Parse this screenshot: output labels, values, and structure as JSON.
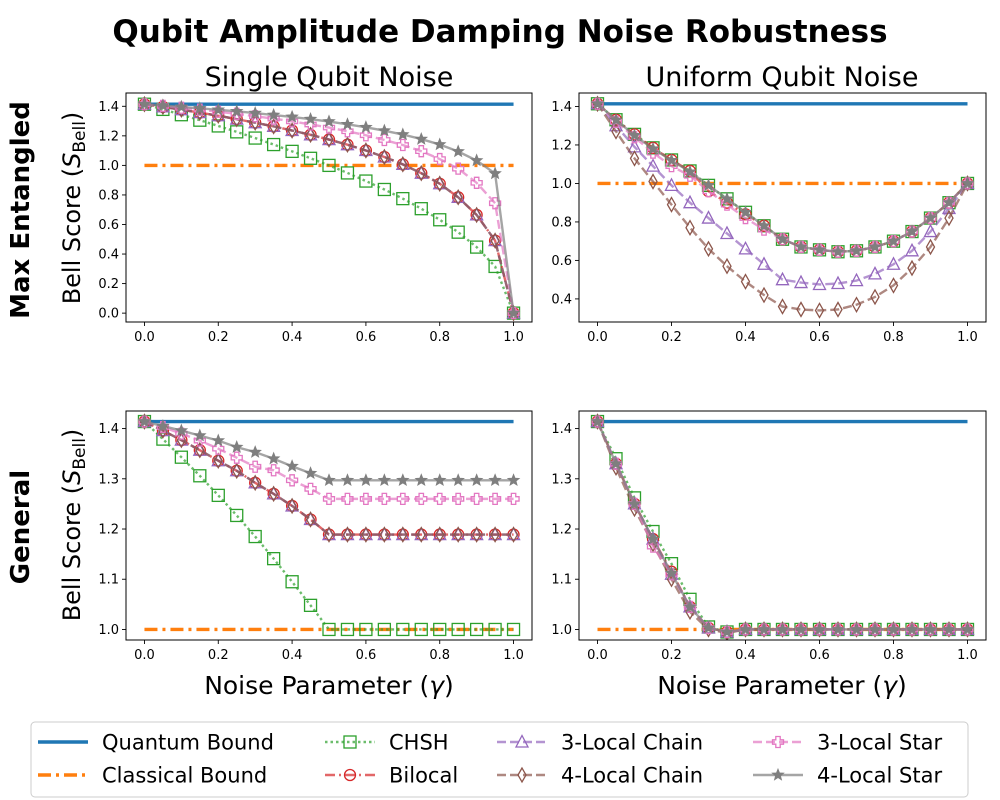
{
  "figure": {
    "suptitle": "Qubit Amplitude Damping Noise Robustness",
    "col_titles": [
      "Single Qubit Noise",
      "Uniform Qubit Noise"
    ],
    "row_labels": [
      "Max Entangled",
      "General"
    ],
    "ylabel_main": "Bell Score (",
    "ylabel_sym": "S",
    "ylabel_sub": "Bell",
    "ylabel_end": ")",
    "xlabel_main": "Noise Parameter (",
    "xlabel_sym": "γ",
    "xlabel_end": ")"
  },
  "legend": {
    "placement": "bottom-center",
    "entries": [
      "Quantum Bound",
      "Classical Bound",
      "CHSH",
      "Bilocal",
      "3-Local Chain",
      "4-Local Chain",
      "3-Local Star",
      "4-Local Star"
    ]
  },
  "chart_data": [
    {
      "type": "line",
      "title": "Single Qubit Noise",
      "row": "Max Entangled",
      "xlabel": "",
      "ylabel": "Bell Score (S_Bell)",
      "xlim": [
        -0.05,
        1.05
      ],
      "ylim": [
        -0.06,
        1.49
      ],
      "xticks": [
        0.0,
        0.2,
        0.4,
        0.6,
        0.8,
        1.0
      ],
      "xtick_labels": [
        "0.0",
        "0.2",
        "0.4",
        "0.6",
        "0.8",
        "1.0"
      ],
      "yticks": [
        0.0,
        0.2,
        0.4,
        0.6,
        0.8,
        1.0,
        1.2,
        1.4
      ],
      "ytick_labels": [
        "0.0",
        "0.2",
        "0.4",
        "0.6",
        "0.8",
        "1.0",
        "1.2",
        "1.4"
      ],
      "x": [
        0.0,
        0.05,
        0.1,
        0.15,
        0.2,
        0.25,
        0.3,
        0.35,
        0.4,
        0.45,
        0.5,
        0.55,
        0.6,
        0.65,
        0.7,
        0.75,
        0.8,
        0.85,
        0.9,
        0.95,
        1.0
      ],
      "quantum_bound": 1.414,
      "classical_bound": 1.0,
      "series": [
        {
          "name": "CHSH",
          "values": [
            1.414,
            1.379,
            1.343,
            1.306,
            1.267,
            1.227,
            1.185,
            1.141,
            1.095,
            1.048,
            1.0,
            0.949,
            0.894,
            0.837,
            0.775,
            0.707,
            0.632,
            0.548,
            0.447,
            0.316,
            0.0
          ]
        },
        {
          "name": "Bilocal",
          "values": [
            1.414,
            1.396,
            1.377,
            1.357,
            1.336,
            1.313,
            1.289,
            1.264,
            1.236,
            1.207,
            1.175,
            1.14,
            1.101,
            1.057,
            1.007,
            0.947,
            0.876,
            0.784,
            0.665,
            0.491,
            0.0
          ]
        },
        {
          "name": "3-Local Chain",
          "values": [
            1.414,
            1.396,
            1.377,
            1.357,
            1.336,
            1.313,
            1.289,
            1.264,
            1.236,
            1.207,
            1.175,
            1.14,
            1.101,
            1.057,
            1.007,
            0.947,
            0.876,
            0.784,
            0.665,
            0.491,
            0.0
          ]
        },
        {
          "name": "4-Local Chain",
          "values": [
            1.414,
            1.396,
            1.377,
            1.357,
            1.336,
            1.313,
            1.289,
            1.264,
            1.236,
            1.207,
            1.175,
            1.14,
            1.101,
            1.057,
            1.007,
            0.947,
            0.876,
            0.784,
            0.665,
            0.491,
            0.0
          ]
        },
        {
          "name": "3-Local Star",
          "values": [
            1.414,
            1.403,
            1.39,
            1.377,
            1.363,
            1.349,
            1.333,
            1.316,
            1.298,
            1.277,
            1.256,
            1.231,
            1.204,
            1.172,
            1.138,
            1.096,
            1.043,
            0.978,
            0.882,
            0.744,
            0.0
          ]
        },
        {
          "name": "4-Local Star",
          "values": [
            1.414,
            1.405,
            1.396,
            1.386,
            1.376,
            1.366,
            1.354,
            1.341,
            1.328,
            1.313,
            1.297,
            1.278,
            1.258,
            1.235,
            1.209,
            1.178,
            1.141,
            1.094,
            1.033,
            0.945,
            0.0
          ]
        }
      ]
    },
    {
      "type": "line",
      "title": "Uniform Qubit Noise",
      "row": "Max Entangled",
      "xlabel": "",
      "ylabel": "",
      "xlim": [
        -0.05,
        1.05
      ],
      "ylim": [
        0.28,
        1.47
      ],
      "xticks": [
        0.0,
        0.2,
        0.4,
        0.6,
        0.8,
        1.0
      ],
      "xtick_labels": [
        "0.0",
        "0.2",
        "0.4",
        "0.6",
        "0.8",
        "1.0"
      ],
      "yticks": [
        0.4,
        0.6,
        0.8,
        1.0,
        1.2,
        1.4
      ],
      "ytick_labels": [
        "0.4",
        "0.6",
        "0.8",
        "1.0",
        "1.2",
        "1.4"
      ],
      "x": [
        0.0,
        0.05,
        0.1,
        0.15,
        0.2,
        0.25,
        0.3,
        0.35,
        0.4,
        0.45,
        0.5,
        0.55,
        0.6,
        0.65,
        0.7,
        0.75,
        0.8,
        0.85,
        0.9,
        0.95,
        1.0
      ],
      "quantum_bound": 1.414,
      "classical_bound": 1.0,
      "series": [
        {
          "name": "CHSH",
          "values": [
            1.414,
            1.331,
            1.255,
            1.185,
            1.122,
            1.065,
            0.99,
            0.92,
            0.85,
            0.78,
            0.71,
            0.67,
            0.655,
            0.645,
            0.65,
            0.67,
            0.7,
            0.75,
            0.82,
            0.9,
            1.0
          ]
        },
        {
          "name": "Bilocal",
          "values": [
            1.414,
            1.331,
            1.255,
            1.185,
            1.122,
            1.065,
            0.96,
            0.9,
            0.84,
            0.78,
            0.71,
            0.67,
            0.655,
            0.645,
            0.65,
            0.67,
            0.7,
            0.75,
            0.82,
            0.9,
            1.0
          ]
        },
        {
          "name": "3-Local Chain",
          "values": [
            1.414,
            1.3,
            1.19,
            1.09,
            0.99,
            0.9,
            0.82,
            0.74,
            0.66,
            0.58,
            0.5,
            0.485,
            0.475,
            0.48,
            0.495,
            0.53,
            0.58,
            0.65,
            0.75,
            0.87,
            1.0
          ]
        },
        {
          "name": "4-Local Chain",
          "values": [
            1.414,
            1.27,
            1.13,
            1.01,
            0.89,
            0.77,
            0.66,
            0.57,
            0.49,
            0.42,
            0.36,
            0.345,
            0.34,
            0.345,
            0.37,
            0.41,
            0.47,
            0.56,
            0.67,
            0.82,
            1.0
          ]
        },
        {
          "name": "3-Local Star",
          "values": [
            1.414,
            1.32,
            1.24,
            1.16,
            1.09,
            1.04,
            0.96,
            0.89,
            0.82,
            0.76,
            0.71,
            0.67,
            0.655,
            0.645,
            0.65,
            0.67,
            0.7,
            0.75,
            0.82,
            0.9,
            1.0
          ]
        },
        {
          "name": "4-Local Star",
          "values": [
            1.414,
            1.33,
            1.25,
            1.18,
            1.12,
            1.06,
            0.99,
            0.92,
            0.85,
            0.78,
            0.71,
            0.67,
            0.655,
            0.645,
            0.65,
            0.67,
            0.7,
            0.75,
            0.82,
            0.9,
            1.0
          ]
        }
      ]
    },
    {
      "type": "line",
      "title": "",
      "row": "General",
      "xlabel": "Noise Parameter (γ)",
      "ylabel": "Bell Score (S_Bell)",
      "xlim": [
        -0.05,
        1.05
      ],
      "ylim": [
        0.979,
        1.435
      ],
      "xticks": [
        0.0,
        0.2,
        0.4,
        0.6,
        0.8,
        1.0
      ],
      "xtick_labels": [
        "0.0",
        "0.2",
        "0.4",
        "0.6",
        "0.8",
        "1.0"
      ],
      "yticks": [
        1.0,
        1.1,
        1.2,
        1.3,
        1.4
      ],
      "ytick_labels": [
        "1.0",
        "1.1",
        "1.2",
        "1.3",
        "1.4"
      ],
      "x": [
        0.0,
        0.05,
        0.1,
        0.15,
        0.2,
        0.25,
        0.3,
        0.35,
        0.4,
        0.45,
        0.5,
        0.55,
        0.6,
        0.65,
        0.7,
        0.75,
        0.8,
        0.85,
        0.9,
        0.95,
        1.0
      ],
      "quantum_bound": 1.414,
      "classical_bound": 1.0,
      "series": [
        {
          "name": "CHSH",
          "values": [
            1.414,
            1.379,
            1.343,
            1.306,
            1.267,
            1.227,
            1.185,
            1.141,
            1.095,
            1.048,
            1.0,
            1.0,
            1.0,
            1.0,
            1.0,
            1.0,
            1.0,
            1.0,
            1.0,
            1.0,
            1.0
          ]
        },
        {
          "name": "Bilocal",
          "values": [
            1.414,
            1.396,
            1.377,
            1.357,
            1.336,
            1.316,
            1.292,
            1.27,
            1.246,
            1.219,
            1.189,
            1.189,
            1.189,
            1.189,
            1.189,
            1.189,
            1.189,
            1.189,
            1.189,
            1.189,
            1.189
          ]
        },
        {
          "name": "3-Local Chain",
          "values": [
            1.414,
            1.396,
            1.377,
            1.357,
            1.336,
            1.316,
            1.292,
            1.27,
            1.246,
            1.219,
            1.189,
            1.189,
            1.189,
            1.189,
            1.189,
            1.189,
            1.189,
            1.189,
            1.189,
            1.189,
            1.189
          ]
        },
        {
          "name": "4-Local Chain",
          "values": [
            1.414,
            1.396,
            1.377,
            1.357,
            1.336,
            1.316,
            1.292,
            1.27,
            1.246,
            1.219,
            1.189,
            1.189,
            1.189,
            1.189,
            1.189,
            1.189,
            1.189,
            1.189,
            1.189,
            1.189,
            1.189
          ]
        },
        {
          "name": "3-Local Star",
          "values": [
            1.414,
            1.403,
            1.39,
            1.376,
            1.36,
            1.342,
            1.324,
            1.317,
            1.297,
            1.28,
            1.26,
            1.26,
            1.26,
            1.26,
            1.26,
            1.26,
            1.26,
            1.26,
            1.26,
            1.26,
            1.26
          ]
        },
        {
          "name": "4-Local Star",
          "values": [
            1.414,
            1.405,
            1.396,
            1.386,
            1.376,
            1.363,
            1.353,
            1.34,
            1.325,
            1.311,
            1.297,
            1.297,
            1.297,
            1.297,
            1.297,
            1.297,
            1.297,
            1.297,
            1.297,
            1.297,
            1.297
          ]
        }
      ]
    },
    {
      "type": "line",
      "title": "",
      "row": "General",
      "xlabel": "Noise Parameter (γ)",
      "ylabel": "",
      "xlim": [
        -0.05,
        1.05
      ],
      "ylim": [
        0.979,
        1.435
      ],
      "xticks": [
        0.0,
        0.2,
        0.4,
        0.6,
        0.8,
        1.0
      ],
      "xtick_labels": [
        "0.0",
        "0.2",
        "0.4",
        "0.6",
        "0.8",
        "1.0"
      ],
      "yticks": [
        1.0,
        1.1,
        1.2,
        1.3,
        1.4
      ],
      "ytick_labels": [
        "1.0",
        "1.1",
        "1.2",
        "1.3",
        "1.4"
      ],
      "x": [
        0.0,
        0.05,
        0.1,
        0.15,
        0.2,
        0.25,
        0.3,
        0.35,
        0.4,
        0.45,
        0.5,
        0.55,
        0.6,
        0.65,
        0.7,
        0.75,
        0.8,
        0.85,
        0.9,
        0.95,
        1.0
      ],
      "quantum_bound": 1.414,
      "classical_bound": 1.0,
      "series": [
        {
          "name": "CHSH",
          "values": [
            1.414,
            1.34,
            1.262,
            1.195,
            1.131,
            1.06,
            1.005,
            0.995,
            1.0,
            1.0,
            1.0,
            1.0,
            1.0,
            1.0,
            1.0,
            1.0,
            1.0,
            1.0,
            1.0,
            1.0,
            1.0
          ]
        },
        {
          "name": "Bilocal",
          "values": [
            1.414,
            1.33,
            1.25,
            1.18,
            1.115,
            1.045,
            1.003,
            0.995,
            1.0,
            1.0,
            1.0,
            1.0,
            1.0,
            1.0,
            1.0,
            1.0,
            1.0,
            1.0,
            1.0,
            1.0,
            1.0
          ]
        },
        {
          "name": "3-Local Chain",
          "values": [
            1.414,
            1.33,
            1.25,
            1.18,
            1.11,
            1.045,
            1.003,
            0.995,
            1.0,
            1.0,
            1.0,
            1.0,
            1.0,
            1.0,
            1.0,
            1.0,
            1.0,
            1.0,
            1.0,
            1.0,
            1.0
          ]
        },
        {
          "name": "4-Local Chain",
          "values": [
            1.414,
            1.322,
            1.24,
            1.17,
            1.1,
            1.035,
            1.0,
            0.993,
            1.0,
            1.0,
            1.0,
            1.0,
            1.0,
            1.0,
            1.0,
            1.0,
            1.0,
            1.0,
            1.0,
            1.0,
            1.0
          ]
        },
        {
          "name": "3-Local Star",
          "values": [
            1.414,
            1.33,
            1.25,
            1.165,
            1.11,
            1.045,
            1.003,
            0.995,
            1.0,
            1.0,
            1.0,
            1.0,
            1.0,
            1.0,
            1.0,
            1.0,
            1.0,
            1.0,
            1.0,
            1.0,
            1.0
          ]
        },
        {
          "name": "4-Local Star",
          "values": [
            1.414,
            1.33,
            1.25,
            1.18,
            1.112,
            1.045,
            1.003,
            0.995,
            1.0,
            1.0,
            1.0,
            1.0,
            1.0,
            1.0,
            1.0,
            1.0,
            1.0,
            1.0,
            1.0,
            1.0,
            1.0
          ]
        }
      ]
    }
  ],
  "series_styles": {
    "Quantum Bound": {
      "color": "#1f77b4",
      "dash": "solid",
      "marker": "none"
    },
    "Classical Bound": {
      "color": "#ff7f0e",
      "dash": "dash-dot",
      "marker": "none"
    },
    "CHSH": {
      "color": "#2ca02c",
      "dash": "dotted",
      "marker": "square"
    },
    "Bilocal": {
      "color": "#d62728",
      "dash": "dash-dot",
      "marker": "circle"
    },
    "3-Local Chain": {
      "color": "#9467bd",
      "dash": "dashed",
      "marker": "triangle"
    },
    "4-Local Chain": {
      "color": "#8c564b",
      "dash": "dashed",
      "marker": "diamond"
    },
    "3-Local Star": {
      "color": "#e377c2",
      "dash": "dashed",
      "marker": "plus-box"
    },
    "4-Local Star": {
      "color": "#7f7f7f",
      "dash": "solid",
      "marker": "star"
    }
  }
}
